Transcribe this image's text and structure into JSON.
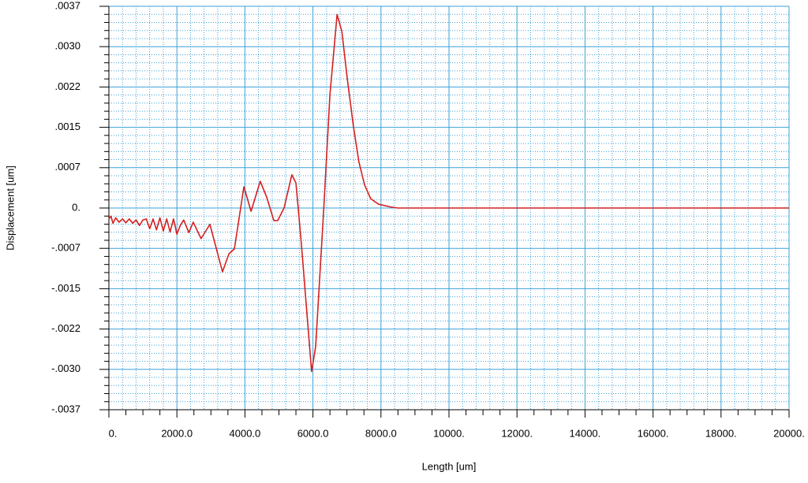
{
  "chart_data": {
    "type": "line",
    "x_label": "Length [um]",
    "y_label": "Displacement [um]",
    "x": [
      0,
      60,
      120,
      200,
      300,
      400,
      500,
      600,
      700,
      800,
      900,
      1000,
      1100,
      1200,
      1300,
      1400,
      1500,
      1600,
      1700,
      1800,
      1900,
      2000,
      2100,
      2200,
      2350,
      2480,
      2710,
      2970,
      3340,
      3530,
      3690,
      3970,
      4180,
      4450,
      4640,
      4850,
      4965,
      5150,
      5380,
      5500,
      5660,
      5960,
      6080,
      6310,
      6500,
      6710,
      6850,
      7010,
      7190,
      7350,
      7520,
      7700,
      7930,
      8280,
      8500,
      10000,
      15000,
      20000
    ],
    "values": [
      -0.0002,
      -0.00015,
      -0.00028,
      -0.00018,
      -0.00026,
      -0.0002,
      -0.00027,
      -0.0002,
      -0.00028,
      -0.00022,
      -0.00032,
      -0.00022,
      -0.0002,
      -0.00038,
      -0.0002,
      -0.0004,
      -0.00018,
      -0.00042,
      -0.0002,
      -0.00044,
      -0.0002,
      -0.00048,
      -0.00032,
      -0.00022,
      -0.00045,
      -0.00026,
      -0.00056,
      -0.0003,
      -0.00117,
      -0.00084,
      -0.00075,
      0.00039,
      -6e-05,
      0.00049,
      0.0002,
      -0.00023,
      -0.00023,
      0.0,
      0.00061,
      0.00046,
      -0.00066,
      -0.003,
      -0.00254,
      -0.0001,
      0.00208,
      0.00355,
      0.00324,
      0.00237,
      0.0015,
      0.00085,
      0.00042,
      0.00017,
      7e-05,
      2e-05,
      0,
      0,
      0,
      0
    ],
    "color": "#d42020",
    "xlim": [
      0,
      20000
    ],
    "xticks": [
      {
        "value": 0,
        "label": "0."
      },
      {
        "value": 2000,
        "label": "2000.0"
      },
      {
        "value": 4000,
        "label": "4000.0"
      },
      {
        "value": 6000,
        "label": "6000.0"
      },
      {
        "value": 8000,
        "label": "8000.0"
      },
      {
        "value": 10000,
        "label": "10000."
      },
      {
        "value": 12000,
        "label": "12000."
      },
      {
        "value": 14000,
        "label": "14000."
      },
      {
        "value": 16000,
        "label": "16000."
      },
      {
        "value": 18000,
        "label": "18000."
      },
      {
        "value": 20000,
        "label": "20000."
      }
    ],
    "ylim": [
      -0.0037,
      0.0037
    ],
    "yticks": [
      {
        "value": 0.0037,
        "label": ".0037"
      },
      {
        "value": 0.00296,
        "label": ".0030"
      },
      {
        "value": 0.00222,
        "label": ".0022"
      },
      {
        "value": 0.00148,
        "label": ".0015"
      },
      {
        "value": 0.00074,
        "label": ".0007"
      },
      {
        "value": 0,
        "label": "0."
      },
      {
        "value": -0.00074,
        "label": "-.0007"
      },
      {
        "value": -0.00148,
        "label": "-.0015"
      },
      {
        "value": -0.00222,
        "label": "-.0022"
      },
      {
        "value": -0.00296,
        "label": "-.0030"
      },
      {
        "value": -0.0037,
        "label": "-.0037"
      }
    ],
    "grid": true,
    "grid_color": "#3ba0d8",
    "minor_grid": true
  }
}
